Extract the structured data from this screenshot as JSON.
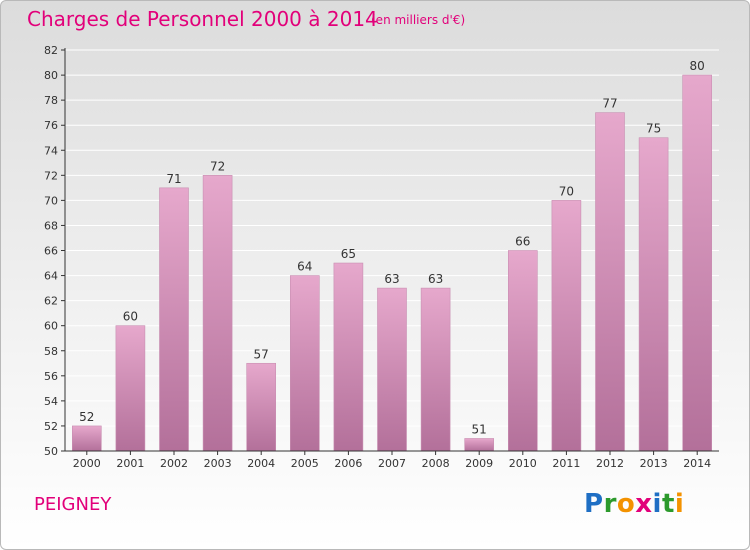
{
  "header": {
    "title": "Charges de Personnel 2000 à 2014",
    "subtitle": "(en milliers d'€)"
  },
  "footer": {
    "commune": "PEIGNEY",
    "logo_letters": [
      "P",
      "r",
      "o",
      "x",
      "i",
      "t",
      "i"
    ],
    "logo_colors": [
      "#1f6fc4",
      "#2c9a2c",
      "#f39200",
      "#e2007a",
      "#1f6fc4",
      "#2c9a2c",
      "#f39200"
    ]
  },
  "colors": {
    "title": "#e2007a",
    "bar_top": "#e6a8cc",
    "bar_bottom": "#b3709a",
    "axis": "#333333",
    "grid": "#ffffff"
  },
  "chart_data": {
    "type": "bar",
    "title": "Charges de Personnel 2000 à 2014",
    "subtitle": "(en milliers d'€)",
    "categories": [
      "2000",
      "2001",
      "2002",
      "2003",
      "2004",
      "2005",
      "2006",
      "2007",
      "2008",
      "2009",
      "2010",
      "2011",
      "2012",
      "2013",
      "2014"
    ],
    "values": [
      52,
      60,
      71,
      72,
      57,
      64,
      65,
      63,
      63,
      51,
      66,
      70,
      77,
      75,
      80
    ],
    "ylim": [
      50,
      82
    ],
    "yticks": [
      50,
      52,
      54,
      56,
      58,
      60,
      62,
      64,
      66,
      68,
      70,
      72,
      74,
      76,
      78,
      80,
      82
    ],
    "grid": true,
    "legend": "none"
  }
}
